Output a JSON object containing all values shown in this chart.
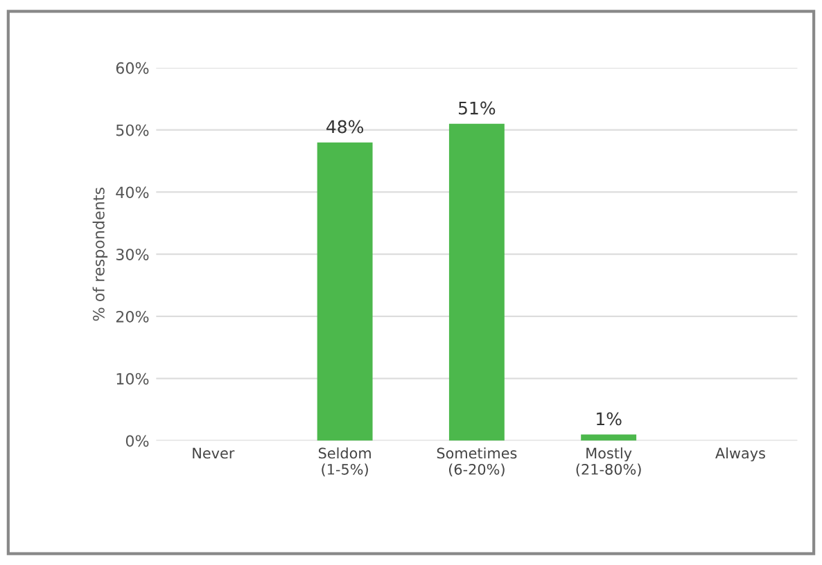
{
  "chart_data": {
    "type": "bar",
    "ylabel": "% of respondents",
    "categories": [
      "Never",
      "Seldom\n(1-5%)",
      "Sometimes\n(6-20%)",
      "Mostly\n(21-80%)",
      "Always"
    ],
    "values": [
      0,
      48,
      51,
      1,
      0
    ],
    "value_labels": [
      null,
      "48%",
      "51%",
      "1%",
      null
    ],
    "color": "#4cb84c",
    "ylim": [
      0,
      60
    ],
    "yticks": [
      {
        "value": 0,
        "label": "0%"
      },
      {
        "value": 10,
        "label": "10%"
      },
      {
        "value": 20,
        "label": "20%"
      },
      {
        "value": 30,
        "label": "30%"
      },
      {
        "value": 40,
        "label": "40%"
      },
      {
        "value": 50,
        "label": "50%"
      },
      {
        "value": 60,
        "label": "60%"
      }
    ],
    "grid": "y"
  }
}
